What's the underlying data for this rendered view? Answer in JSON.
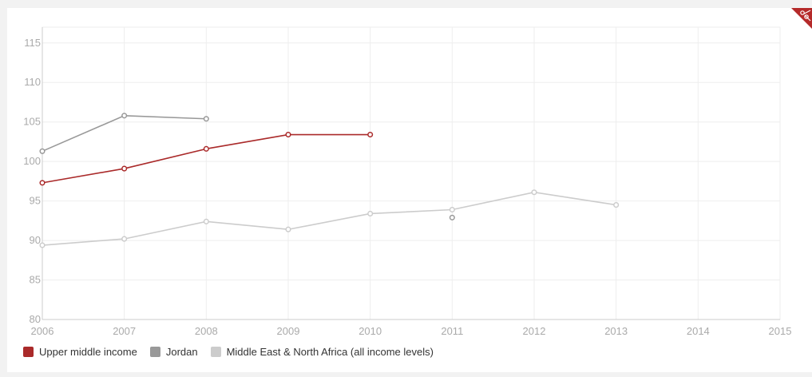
{
  "chart_data": {
    "type": "line",
    "x": [
      2006,
      2007,
      2008,
      2009,
      2010,
      2011,
      2012,
      2013,
      2014,
      2015
    ],
    "xlim": [
      2006,
      2015
    ],
    "ylim": [
      80,
      117
    ],
    "yticks": [
      80,
      85,
      90,
      95,
      100,
      105,
      110,
      115
    ],
    "xticks": [
      "2006",
      "2007",
      "2008",
      "2009",
      "2010",
      "2011",
      "2012",
      "2013",
      "2014",
      "2015"
    ],
    "ytick_labels": [
      "80",
      "85",
      "90",
      "95",
      "100",
      "105",
      "110",
      "115"
    ],
    "grid": true,
    "legend_position": "bottom-left",
    "series": [
      {
        "name": "Middle East & North Africa (all income levels)",
        "color": "#cccccc",
        "points": [
          [
            2006,
            89.4
          ],
          [
            2007,
            90.2
          ],
          [
            2008,
            92.4
          ],
          [
            2009,
            91.4
          ],
          [
            2010,
            93.4
          ],
          [
            2011,
            93.9
          ],
          [
            2012,
            96.1
          ],
          [
            2013,
            94.5
          ]
        ]
      },
      {
        "name": "Jordan",
        "color": "#999999",
        "points": [
          [
            2006,
            101.3
          ],
          [
            2007,
            105.8
          ],
          [
            2008,
            105.4
          ],
          [
            2011,
            92.9
          ]
        ],
        "segments": [
          [
            0,
            1,
            2
          ],
          [
            3
          ]
        ]
      },
      {
        "name": "Upper middle income",
        "color": "#aa2a2a",
        "points": [
          [
            2006,
            97.3
          ],
          [
            2007,
            99.1
          ],
          [
            2008,
            101.6
          ],
          [
            2009,
            103.4
          ],
          [
            2010,
            103.4
          ]
        ]
      }
    ]
  },
  "legend": {
    "items": [
      {
        "label": "Upper middle income",
        "color": "#aa2a2a"
      },
      {
        "label": "Jordan",
        "color": "#999999"
      },
      {
        "label": "Middle East & North Africa (all income levels)",
        "color": "#cccccc"
      }
    ]
  },
  "corner_icon": {
    "name": "scissors-icon",
    "color": "#b52a2a"
  }
}
